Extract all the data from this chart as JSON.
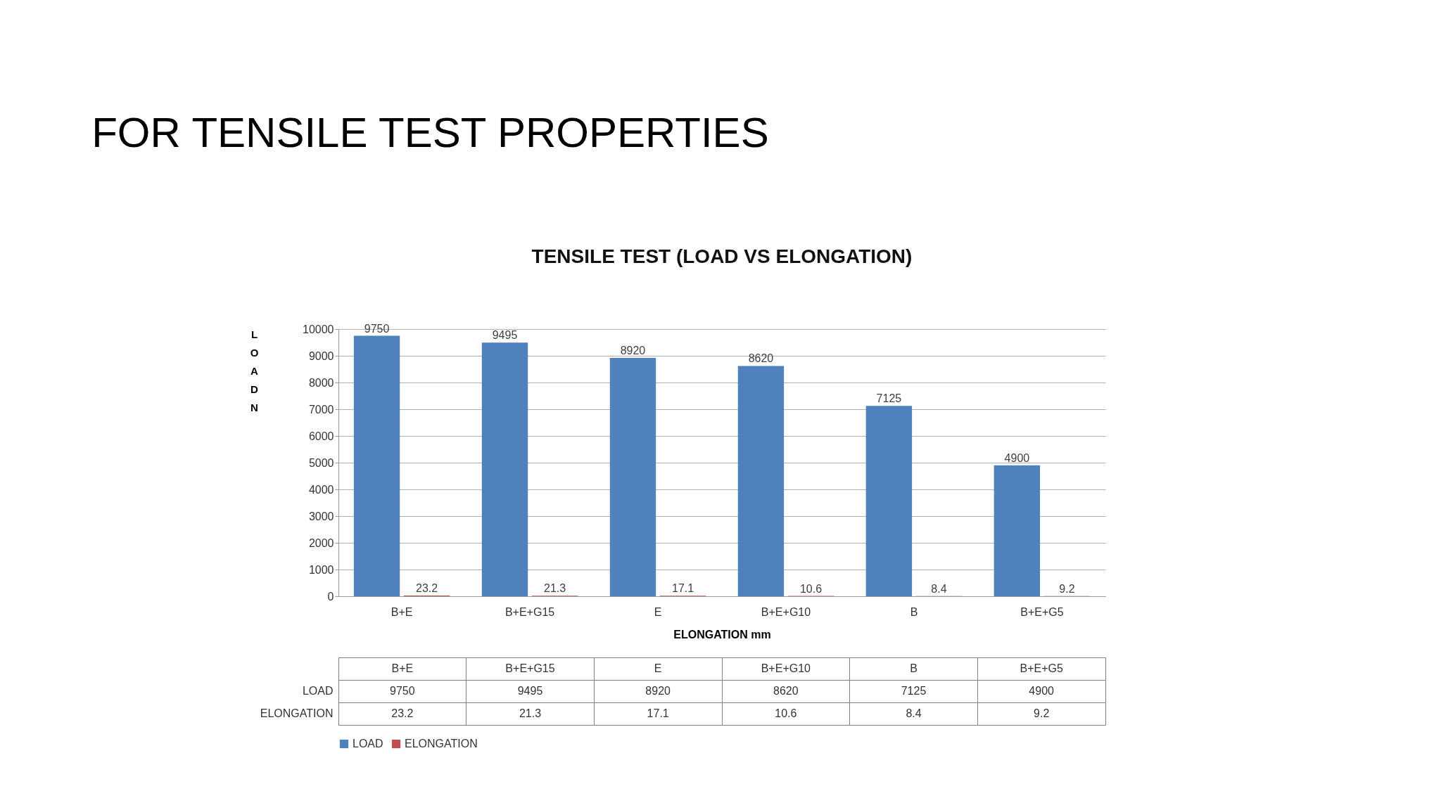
{
  "chart_data": [
    {
      "type": "bar",
      "title": "FOR TENSILE TEST PROPERTIES",
      "subtitle": "TENSILE TEST (LOAD VS ELONGATION)",
      "xlabel": "ELONGATION mm",
      "ylabel": "LOAD N",
      "categories": [
        "B+E",
        "B+E+G15",
        "E",
        "B+E+G10",
        "B",
        "B+E+G5"
      ],
      "series": [
        {
          "name": "LOAD",
          "color": "#4f81bd",
          "values": [
            9750,
            9495,
            8920,
            8620,
            7125,
            4900
          ]
        },
        {
          "name": "ELONGATION",
          "color": "#c0504d",
          "values": [
            23.2,
            21.3,
            17.1,
            10.6,
            8.4,
            9.2
          ]
        }
      ],
      "ylim": [
        0,
        10000
      ],
      "yticks": [
        0,
        1000,
        2000,
        3000,
        4000,
        5000,
        6000,
        7000,
        8000,
        9000,
        10000
      ],
      "grid": "y",
      "legend": "bottom",
      "data_labels": true
    },
    {
      "type": "other",
      "categories": [
        "B+E",
        "B+E+G15",
        "E",
        "B+E+G10",
        "B",
        "B+E+G5"
      ],
      "series": [
        {
          "name": "LOAD",
          "values": [
            9750,
            9495,
            8920,
            8620,
            7125,
            4900
          ]
        },
        {
          "name": "ELONGATION",
          "values": [
            23.2,
            21.3,
            17.1,
            10.6,
            8.4,
            9.2
          ]
        }
      ],
      "data_labels": true
    }
  ]
}
